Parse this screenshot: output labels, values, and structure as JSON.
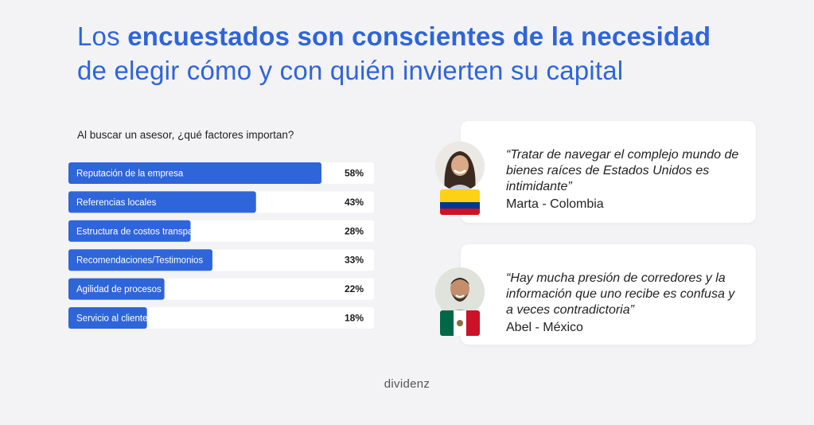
{
  "title": {
    "line1_light": "Los ",
    "line1_bold": "encuestados son conscientes de la necesidad",
    "line2": "de elegir cómo y con quién invierten su capital"
  },
  "question": "Al buscar un asesor, ¿qué factores importan?",
  "colors": {
    "title": "#2f65da",
    "bar": "#2f65da",
    "background": "#f3f3f5"
  },
  "chart_data": {
    "type": "bar",
    "orientation": "horizontal",
    "categories": [
      "Reputación de la empresa",
      "Referencias locales",
      "Estructura de costos transparentes",
      "Recomendaciones/Testimonios",
      "Agilidad de procesos",
      "Servicio al cliente"
    ],
    "values": [
      58,
      43,
      28,
      33,
      22,
      18
    ],
    "value_labels": [
      "58%",
      "43%",
      "28%",
      "33%",
      "22%",
      "18%"
    ],
    "title": "Al buscar un asesor, ¿qué factores importan?",
    "xlabel": "",
    "ylabel": "",
    "unit": "%"
  },
  "quotes": [
    {
      "text": "“Tratar de navegar el complejo mundo de bienes raíces de Estados Unidos es intimidante”",
      "author": "Marta - Colombia",
      "avatar_icon": "woman-portrait-icon",
      "flag_icon": "colombia-flag-icon"
    },
    {
      "text": "“Hay mucha presión de corredores y la información que uno recibe es confusa y a veces contradictoria”",
      "author": "Abel - México",
      "avatar_icon": "man-portrait-icon",
      "flag_icon": "mexico-flag-icon"
    }
  ],
  "brand": "dividenz"
}
